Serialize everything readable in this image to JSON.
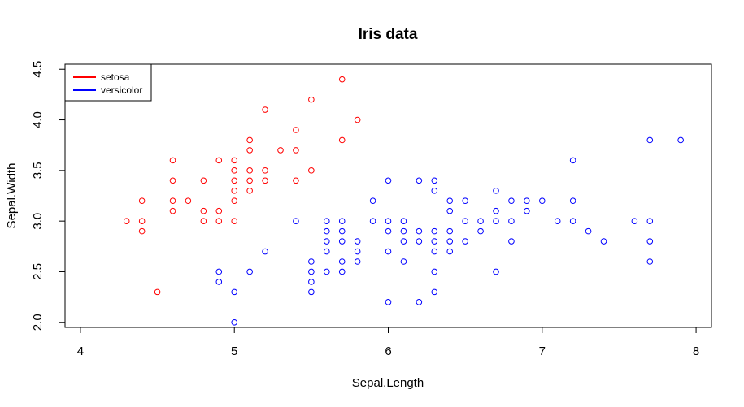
{
  "chart_data": {
    "type": "scatter",
    "title": "Iris data",
    "xlabel": "Sepal.Length",
    "ylabel": "Sepal.Width",
    "xlim": [
      3.9,
      8.1
    ],
    "ylim": [
      1.95,
      4.55
    ],
    "x_ticks": [
      "4",
      "5",
      "6",
      "7",
      "8"
    ],
    "y_ticks": [
      "2.0",
      "2.5",
      "3.0",
      "3.5",
      "4.0",
      "4.5"
    ],
    "legend": {
      "placement": "top-left"
    },
    "series": [
      {
        "name": "setosa",
        "color": "#ff0000",
        "points": [
          [
            4.3,
            3.0
          ],
          [
            4.4,
            2.9
          ],
          [
            4.4,
            3.0
          ],
          [
            4.4,
            3.2
          ],
          [
            4.5,
            2.3
          ],
          [
            4.6,
            3.1
          ],
          [
            4.6,
            3.2
          ],
          [
            4.6,
            3.4
          ],
          [
            4.6,
            3.6
          ],
          [
            4.7,
            3.2
          ],
          [
            4.8,
            3.0
          ],
          [
            4.8,
            3.1
          ],
          [
            4.8,
            3.4
          ],
          [
            4.9,
            3.0
          ],
          [
            4.9,
            3.1
          ],
          [
            4.9,
            3.6
          ],
          [
            5.0,
            3.0
          ],
          [
            5.0,
            3.2
          ],
          [
            5.0,
            3.3
          ],
          [
            5.0,
            3.4
          ],
          [
            5.0,
            3.5
          ],
          [
            5.0,
            3.6
          ],
          [
            5.1,
            3.3
          ],
          [
            5.1,
            3.4
          ],
          [
            5.1,
            3.5
          ],
          [
            5.1,
            3.7
          ],
          [
            5.1,
            3.8
          ],
          [
            5.2,
            3.4
          ],
          [
            5.2,
            3.5
          ],
          [
            5.2,
            4.1
          ],
          [
            5.3,
            3.7
          ],
          [
            5.4,
            3.4
          ],
          [
            5.4,
            3.7
          ],
          [
            5.4,
            3.9
          ],
          [
            5.5,
            3.5
          ],
          [
            5.5,
            4.2
          ],
          [
            5.7,
            3.8
          ],
          [
            5.7,
            4.4
          ],
          [
            5.8,
            4.0
          ]
        ]
      },
      {
        "name": "versicolor",
        "color": "#0000ff",
        "points": [
          [
            4.9,
            2.4
          ],
          [
            4.9,
            2.5
          ],
          [
            5.0,
            2.0
          ],
          [
            5.0,
            2.3
          ],
          [
            5.1,
            2.5
          ],
          [
            5.2,
            2.7
          ],
          [
            5.4,
            3.0
          ],
          [
            5.5,
            2.3
          ],
          [
            5.5,
            2.4
          ],
          [
            5.5,
            2.5
          ],
          [
            5.5,
            2.6
          ],
          [
            5.6,
            2.5
          ],
          [
            5.6,
            2.7
          ],
          [
            5.6,
            2.8
          ],
          [
            5.6,
            2.9
          ],
          [
            5.6,
            3.0
          ],
          [
            5.7,
            2.5
          ],
          [
            5.7,
            2.6
          ],
          [
            5.7,
            2.8
          ],
          [
            5.7,
            2.9
          ],
          [
            5.7,
            3.0
          ],
          [
            5.8,
            2.6
          ],
          [
            5.8,
            2.7
          ],
          [
            5.8,
            2.8
          ],
          [
            5.9,
            3.0
          ],
          [
            5.9,
            3.2
          ],
          [
            6.0,
            2.2
          ],
          [
            6.0,
            2.7
          ],
          [
            6.0,
            2.9
          ],
          [
            6.0,
            3.0
          ],
          [
            6.0,
            3.4
          ],
          [
            6.1,
            2.6
          ],
          [
            6.1,
            2.8
          ],
          [
            6.1,
            2.9
          ],
          [
            6.1,
            3.0
          ],
          [
            6.2,
            2.2
          ],
          [
            6.2,
            2.8
          ],
          [
            6.2,
            2.9
          ],
          [
            6.2,
            3.4
          ],
          [
            6.3,
            2.3
          ],
          [
            6.3,
            2.5
          ],
          [
            6.3,
            2.7
          ],
          [
            6.3,
            2.8
          ],
          [
            6.3,
            2.9
          ],
          [
            6.3,
            3.3
          ],
          [
            6.3,
            3.4
          ],
          [
            6.4,
            2.7
          ],
          [
            6.4,
            2.8
          ],
          [
            6.4,
            2.9
          ],
          [
            6.4,
            3.1
          ],
          [
            6.4,
            3.2
          ],
          [
            6.5,
            2.8
          ],
          [
            6.5,
            3.0
          ],
          [
            6.5,
            3.2
          ],
          [
            6.6,
            2.9
          ],
          [
            6.6,
            3.0
          ],
          [
            6.7,
            2.5
          ],
          [
            6.7,
            3.0
          ],
          [
            6.7,
            3.1
          ],
          [
            6.7,
            3.3
          ],
          [
            6.8,
            2.8
          ],
          [
            6.8,
            3.0
          ],
          [
            6.8,
            3.2
          ],
          [
            6.9,
            3.1
          ],
          [
            6.9,
            3.2
          ],
          [
            7.0,
            3.2
          ],
          [
            7.1,
            3.0
          ],
          [
            7.2,
            3.0
          ],
          [
            7.2,
            3.2
          ],
          [
            7.2,
            3.6
          ],
          [
            7.3,
            2.9
          ],
          [
            7.4,
            2.8
          ],
          [
            7.6,
            3.0
          ],
          [
            7.7,
            2.6
          ],
          [
            7.7,
            2.8
          ],
          [
            7.7,
            3.0
          ],
          [
            7.7,
            3.8
          ],
          [
            7.9,
            3.8
          ]
        ]
      }
    ]
  }
}
